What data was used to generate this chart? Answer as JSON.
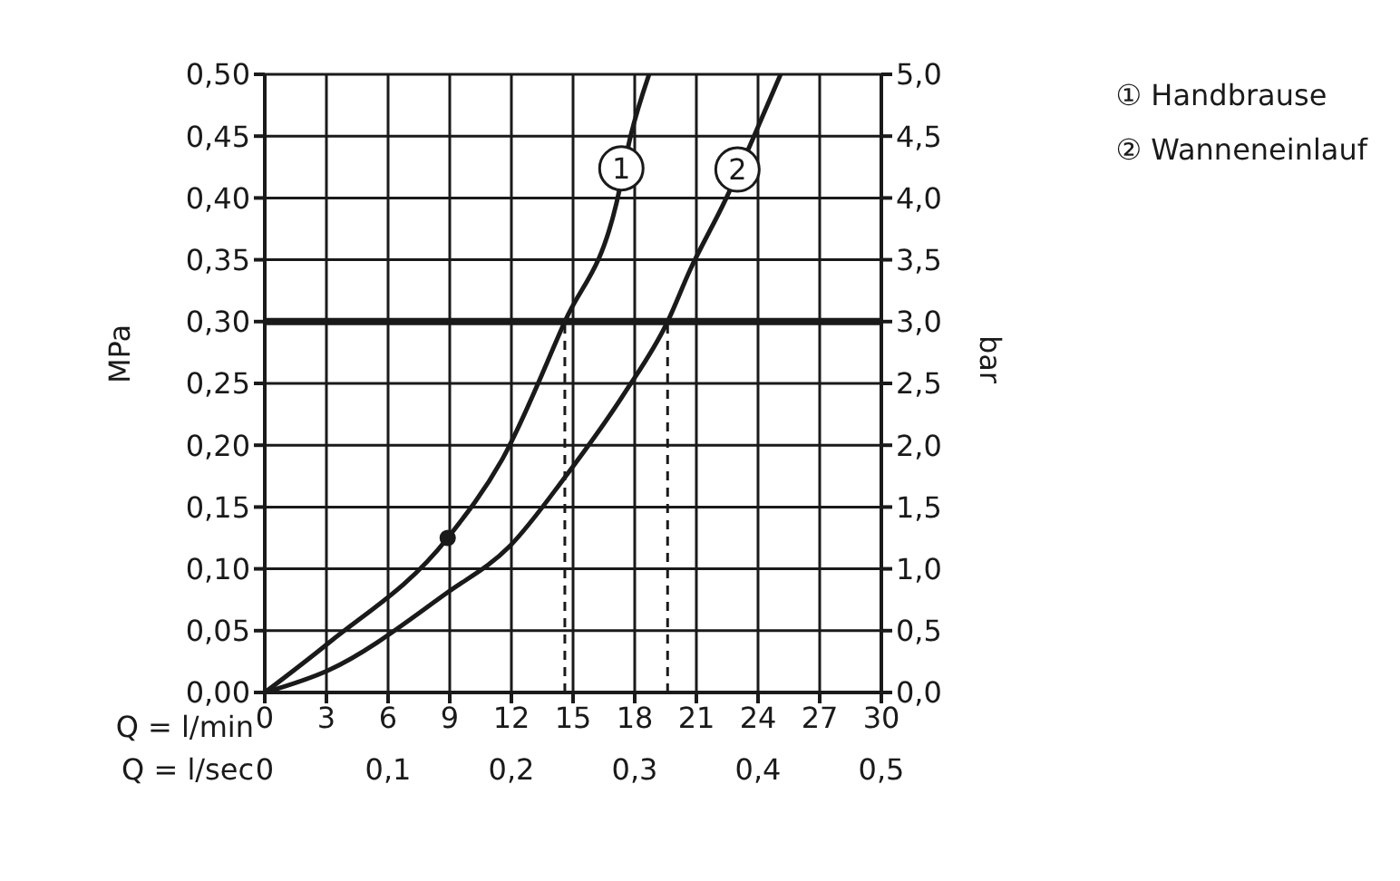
{
  "chart_data": {
    "type": "line",
    "xlabel": "Q = l/min",
    "x2label": "Q = l/sec",
    "ylabel": "MPa",
    "y2label": "bar",
    "xlim": [
      0,
      30
    ],
    "xticks": [
      0,
      3,
      6,
      9,
      12,
      15,
      18,
      21,
      24,
      27,
      30
    ],
    "x2lim": [
      0,
      0.5
    ],
    "x2ticks": [
      0,
      {
        "value": 0.1,
        "label": "0,1"
      },
      {
        "value": 0.2,
        "label": "0,2"
      },
      {
        "value": 0.3,
        "label": "0,3"
      },
      {
        "value": 0.4,
        "label": "0,4"
      },
      {
        "value": 0.5,
        "label": "0,5"
      }
    ],
    "ylim": [
      0,
      0.5
    ],
    "yticks": [
      {
        "value": 0,
        "label": "0,00"
      },
      {
        "value": 0.05,
        "label": "0,05"
      },
      {
        "value": 0.1,
        "label": "0,10"
      },
      {
        "value": 0.15,
        "label": "0,15"
      },
      {
        "value": 0.2,
        "label": "0,20"
      },
      {
        "value": 0.25,
        "label": "0,25"
      },
      {
        "value": 0.3,
        "label": "0,30"
      },
      {
        "value": 0.35,
        "label": "0,35"
      },
      {
        "value": 0.4,
        "label": "0,40"
      },
      {
        "value": 0.45,
        "label": "0,45"
      },
      {
        "value": 0.5,
        "label": "0,50"
      }
    ],
    "y2lim": [
      0,
      5
    ],
    "y2ticks": [
      {
        "value": 0,
        "label": "0,0"
      },
      {
        "value": 0.5,
        "label": "0,5"
      },
      {
        "value": 1,
        "label": "1,0"
      },
      {
        "value": 1.5,
        "label": "1,5"
      },
      {
        "value": 2,
        "label": "2,0"
      },
      {
        "value": 2.5,
        "label": "2,5"
      },
      {
        "value": 3,
        "label": "3,0"
      },
      {
        "value": 3.5,
        "label": "3,5"
      },
      {
        "value": 4,
        "label": "4,0"
      },
      {
        "value": 4.5,
        "label": "4,5"
      },
      {
        "value": 5,
        "label": "5,0"
      }
    ],
    "grid": true,
    "legend": "top right",
    "marker": "none",
    "line_style": "solid",
    "series": [
      {
        "name": "① Handbrause",
        "color": "#1a1a1a",
        "x": [
          0,
          3.1,
          8.9,
          11.6,
          14.6,
          17.1,
          17.8,
          18.7
        ],
        "values": [
          0,
          0.04,
          0.125,
          0.19,
          0.3,
          0.395,
          0.45,
          0.5
        ]
      },
      {
        "name": "② Wanneneinlauf",
        "color": "#1a1a1a",
        "x": [
          0,
          3.1,
          8.9,
          11.9,
          14.6,
          17.5,
          19.6,
          20.7,
          22.4,
          23.7,
          25.1
        ],
        "values": [
          0,
          0.018,
          0.081,
          0.118,
          0.174,
          0.242,
          0.3,
          0.342,
          0.398,
          0.446,
          0.5
        ]
      },
      {
        "type": "scatter",
        "color": "#1a1a1a",
        "marker": "circle",
        "x": [
          8.9
        ],
        "values": [
          0.125
        ]
      }
    ],
    "ref_lines": [
      {
        "axis": "y",
        "value": 0.3,
        "color": "#1a1a1a",
        "line_style": "solid"
      },
      {
        "axis": "x",
        "value": 14.6,
        "color": "#1a1a1a",
        "line_style": "dashed"
      },
      {
        "axis": "x",
        "value": 19.6,
        "color": "#1a1a1a",
        "line_style": "dashed"
      }
    ],
    "annotations": [
      {
        "text": "1",
        "x": 17.35,
        "y": 0.424
      },
      {
        "text": "2",
        "x": 23,
        "y": 0.423
      }
    ]
  }
}
